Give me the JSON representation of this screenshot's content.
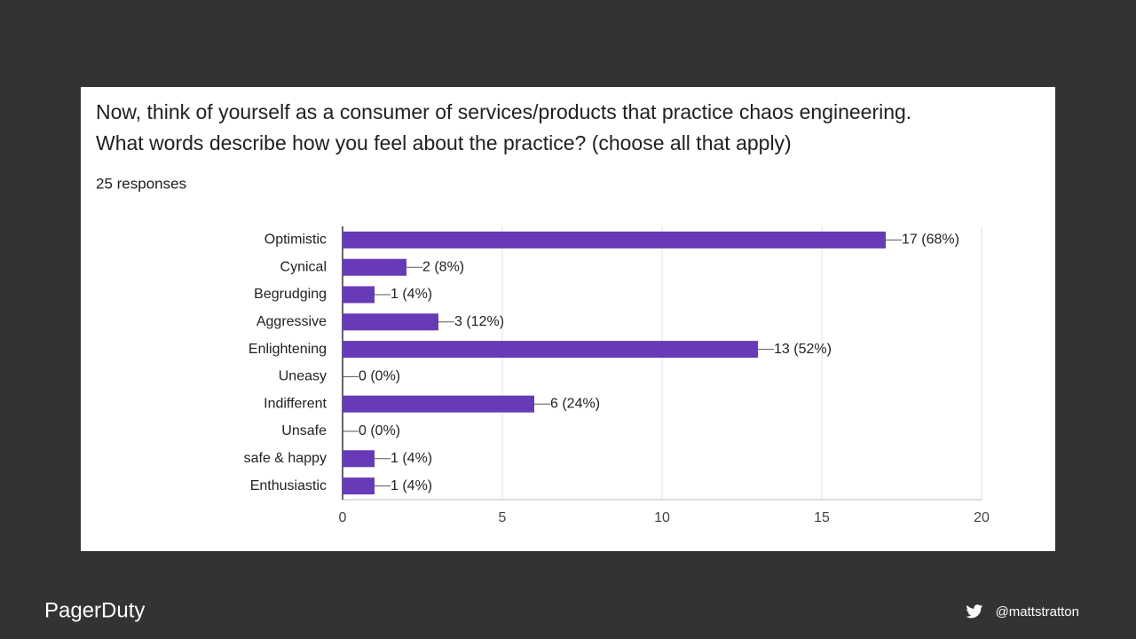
{
  "chart_data": {
    "type": "bar",
    "orientation": "horizontal",
    "title": [
      "Now, think of yourself as a consumer of services/products that practice chaos engineering.",
      "What words describe how you feel about the practice? (choose all that apply)"
    ],
    "subtitle": "25 responses",
    "categories": [
      "Optimistic",
      "Cynical",
      "Begrudging",
      "Aggressive",
      "Enlightening",
      "Uneasy",
      "Indifferent",
      "Unsafe",
      "safe & happy",
      "Enthusiastic"
    ],
    "values": [
      17,
      2,
      1,
      3,
      13,
      0,
      6,
      0,
      1,
      1
    ],
    "value_labels": [
      "17 (68%)",
      "2 (8%)",
      "1 (4%)",
      "3 (12%)",
      "13 (52%)",
      "0 (0%)",
      "6 (24%)",
      "0 (0%)",
      "1 (4%)",
      "1 (4%)"
    ],
    "color": "#673ab7",
    "xlim": [
      0,
      20
    ],
    "xticks": [
      0,
      5,
      10,
      15,
      20
    ],
    "grid": true
  },
  "footer": {
    "brand": "PagerDuty",
    "handle": "@mattstratton"
  }
}
